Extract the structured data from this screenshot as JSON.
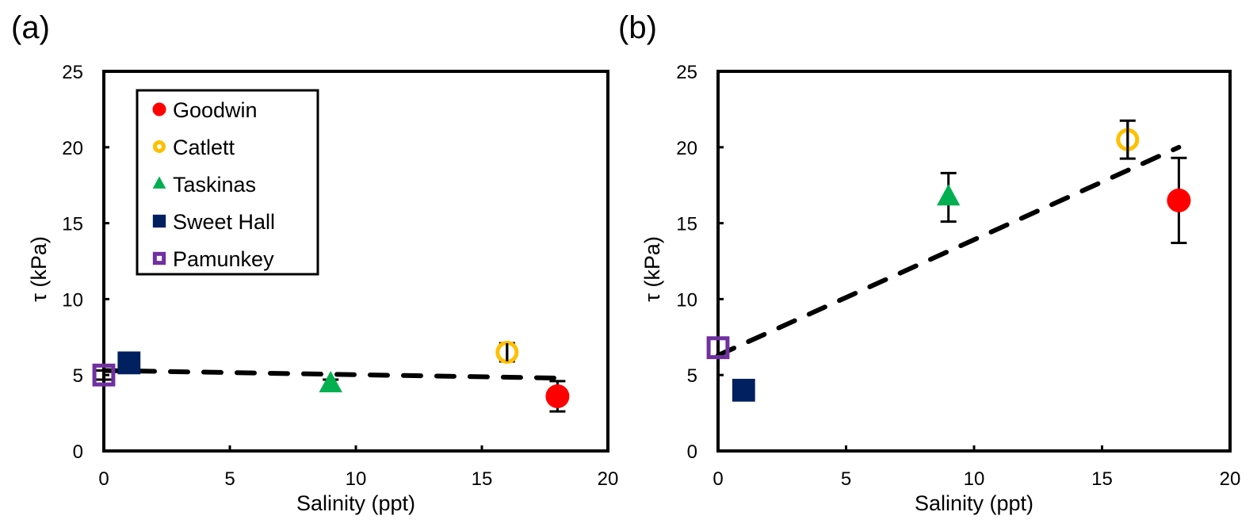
{
  "chart_data": [
    {
      "type": "scatter",
      "panel_label": "(a)",
      "xlabel": "Salinity (ppt)",
      "ylabel": "τ (kPa)",
      "xlim": [
        0,
        20
      ],
      "ylim": [
        0,
        25
      ],
      "xticks": [
        0,
        5,
        10,
        15,
        20
      ],
      "yticks": [
        0,
        5,
        10,
        15,
        20,
        25
      ],
      "grid": false,
      "legend": {
        "placement": "top-left",
        "entries": [
          "Goodwin",
          "Catlett",
          "Taskinas",
          "Sweet Hall",
          "Pamunkey"
        ]
      },
      "series": [
        {
          "name": "Goodwin",
          "marker": "circle-filled",
          "color": "#ff0000",
          "x": 18,
          "y": 3.6,
          "err": 1.0
        },
        {
          "name": "Catlett",
          "marker": "circle-open",
          "color": "#ffc000",
          "x": 16,
          "y": 6.5,
          "err": 0.6
        },
        {
          "name": "Taskinas",
          "marker": "triangle-filled",
          "color": "#00b050",
          "x": 9,
          "y": 4.4,
          "err": 0.3
        },
        {
          "name": "Sweet Hall",
          "marker": "square-filled",
          "color": "#002060",
          "x": 1,
          "y": 5.8,
          "err": 0.0
        },
        {
          "name": "Pamunkey",
          "marker": "square-open",
          "color": "#7030a0",
          "x": 0,
          "y": 5.0,
          "err": 0.3
        }
      ],
      "trendline": {
        "style": "dashed",
        "color": "#000000",
        "x": [
          0,
          18
        ],
        "y": [
          5.3,
          4.8
        ]
      }
    },
    {
      "type": "scatter",
      "panel_label": "(b)",
      "xlabel": "Salinity (ppt)",
      "ylabel": "τ (kPa)",
      "xlim": [
        0,
        20
      ],
      "ylim": [
        0,
        25
      ],
      "xticks": [
        0,
        5,
        10,
        15,
        20
      ],
      "yticks": [
        0,
        5,
        10,
        15,
        20,
        25
      ],
      "grid": false,
      "legend": null,
      "series": [
        {
          "name": "Goodwin",
          "marker": "circle-filled",
          "color": "#ff0000",
          "x": 18,
          "y": 16.5,
          "err": 2.8
        },
        {
          "name": "Catlett",
          "marker": "circle-open",
          "color": "#ffc000",
          "x": 16,
          "y": 20.5,
          "err": 1.25
        },
        {
          "name": "Taskinas",
          "marker": "triangle-filled",
          "color": "#00b050",
          "x": 9,
          "y": 16.7,
          "err": 1.6
        },
        {
          "name": "Sweet Hall",
          "marker": "square-filled",
          "color": "#002060",
          "x": 1,
          "y": 4.0,
          "err": 0.0
        },
        {
          "name": "Pamunkey",
          "marker": "square-open",
          "color": "#7030a0",
          "x": 0,
          "y": 6.8,
          "err": 0.0
        }
      ],
      "trendline": {
        "style": "dashed",
        "color": "#000000",
        "x": [
          0,
          18
        ],
        "y": [
          6.3,
          20.0
        ]
      }
    }
  ]
}
